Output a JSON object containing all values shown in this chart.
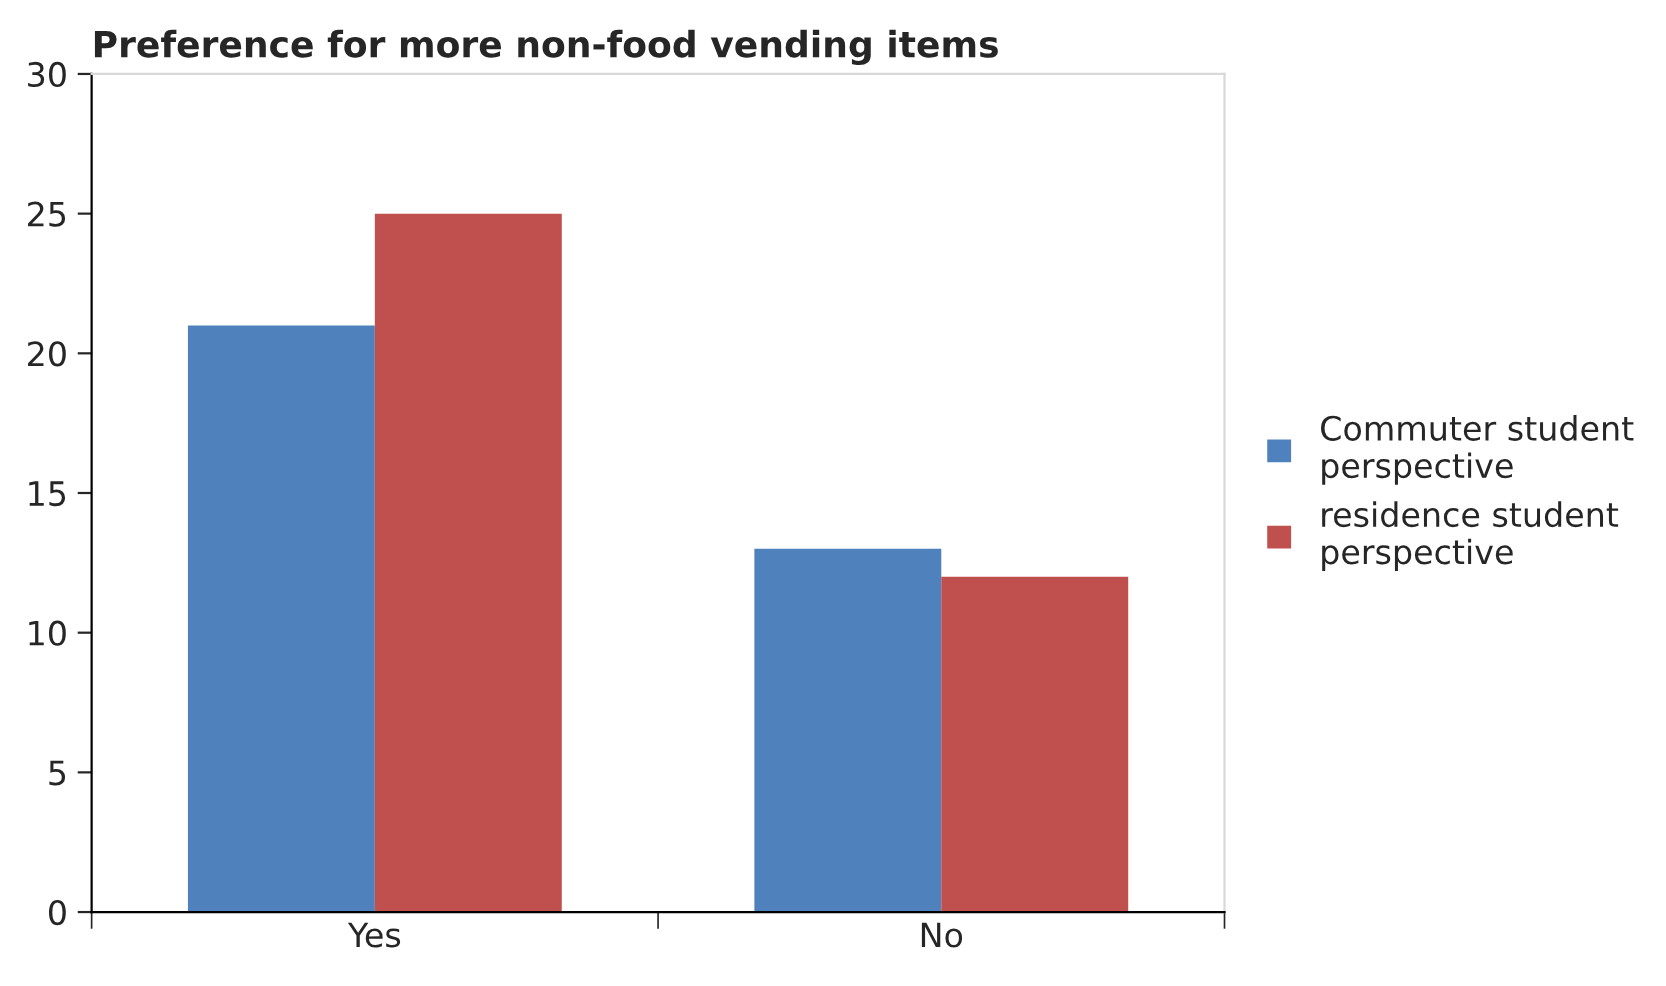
{
  "chart_data": {
    "type": "bar",
    "title": "Preference for more non-food vending items",
    "categories": [
      "Yes",
      "No"
    ],
    "series": [
      {
        "name": "Commuter student perspective",
        "color": "#4f81bd",
        "values": [
          21,
          13
        ]
      },
      {
        "name": "residence student perspective",
        "color": "#c0504d",
        "values": [
          25,
          12
        ]
      }
    ],
    "ylim": [
      0,
      30
    ],
    "yticks": [
      0,
      5,
      10,
      15,
      20,
      25,
      30
    ],
    "grid": false,
    "legend": "right"
  }
}
